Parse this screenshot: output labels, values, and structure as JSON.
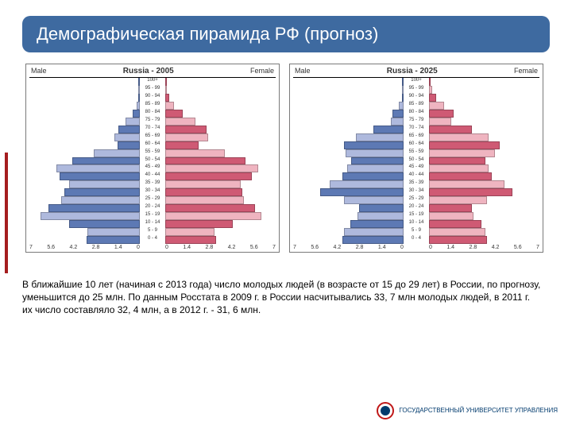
{
  "title": "Демографическая пирамида РФ (прогноз)",
  "footnote_html": "В ближайшие 10 лет (начиная с 2013 года) число молодых людей\n (в возрасте от 15 до 29 лет) в России, по прогнозу, уменьшится до 25 млн.\n По данным Росстата в 2009 г. в России насчитывались 33, 7 млн молодых людей,\n в 2011 г. их число составляло 32, 4 млн, а в 2012 г. - 31, 6 млн.",
  "logo_text": "ГОСУДАРСТВЕННЫЙ\nУНИВЕРСИТЕТ\nУПРАВЛЕНИЯ",
  "labels": {
    "male": "Male",
    "female": "Female"
  },
  "age_bands": [
    "100+",
    "95 - 99",
    "90 - 94",
    "85 - 89",
    "80 - 84",
    "75 - 79",
    "70 - 74",
    "65 - 69",
    "60 - 64",
    "55 - 59",
    "50 - 54",
    "45 - 49",
    "40 - 44",
    "35 - 39",
    "30 - 34",
    "25 - 29",
    "20 - 24",
    "15 - 19",
    "10 - 14",
    "5 - 9",
    "0 - 4"
  ],
  "x_ticks": [
    "7",
    "5.6",
    "4.2",
    "2.8",
    "1.4",
    "0"
  ],
  "x_max": 7,
  "colors": {
    "male": "#5d79b4",
    "male_alt": "#aeb9dd",
    "female": "#cf5a74",
    "female_alt": "#efb4c0",
    "title_bg": "#3e6aa0",
    "accent_red": "#a51d1f"
  },
  "pyramids": [
    {
      "title": "Russia - 2005",
      "male": [
        0.02,
        0.04,
        0.08,
        0.18,
        0.45,
        0.9,
        1.35,
        1.6,
        1.4,
        2.9,
        4.3,
        5.3,
        5.1,
        4.5,
        4.8,
        5.0,
        5.8,
        6.3,
        4.5,
        3.3,
        3.4
      ],
      "female": [
        0.05,
        0.1,
        0.25,
        0.55,
        1.1,
        1.9,
        2.6,
        2.7,
        2.1,
        3.8,
        5.1,
        5.9,
        5.5,
        4.8,
        4.9,
        5.0,
        5.7,
        6.1,
        4.3,
        3.1,
        3.2
      ]
    },
    {
      "title": "Russia - 2025",
      "male": [
        0.02,
        0.04,
        0.1,
        0.3,
        0.7,
        0.8,
        1.9,
        3.0,
        3.8,
        3.7,
        3.3,
        3.6,
        3.9,
        4.7,
        5.3,
        3.8,
        2.8,
        2.9,
        3.4,
        3.8,
        3.9
      ],
      "female": [
        0.08,
        0.18,
        0.45,
        0.95,
        1.55,
        1.4,
        2.7,
        3.8,
        4.5,
        4.2,
        3.6,
        3.8,
        4.0,
        4.8,
        5.3,
        3.7,
        2.7,
        2.8,
        3.3,
        3.6,
        3.7
      ]
    }
  ]
}
